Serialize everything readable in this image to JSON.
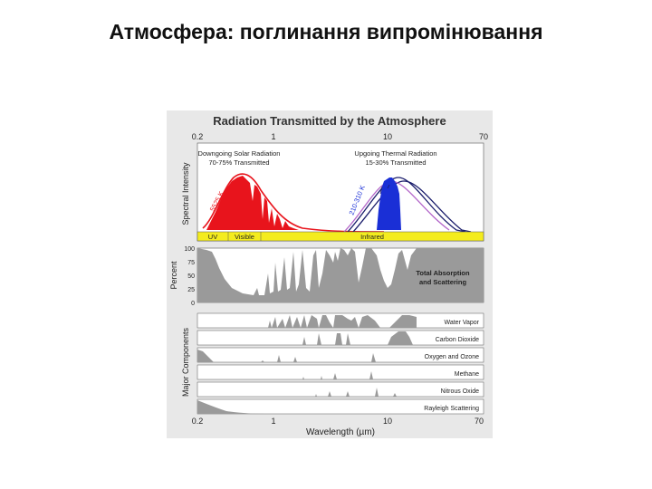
{
  "slide": {
    "title": "Атмосфера: поглинання випромінювання"
  },
  "figure": {
    "title": "Radiation Transmitted by the Atmosphere",
    "x_ticks": [
      "0.2",
      "1",
      "10",
      "70"
    ],
    "x_label": "Wavelength (µm)",
    "top_panel": {
      "ylabel": "Spectral Intensity",
      "solar_label_1": "Downgoing Solar Radiation",
      "solar_label_2": "70-75% Transmitted",
      "thermal_label_1": "Upgoing Thermal Radiation",
      "thermal_label_2": "15-30% Transmitted",
      "sun_temp": "5525 K",
      "earth_temp": "210-310 K",
      "band_uv": "UV",
      "band_visible": "Visible",
      "band_infrared": "Infrared"
    },
    "absorption_panel": {
      "ylabel": "Percent",
      "y_ticks": [
        "100",
        "75",
        "50",
        "25",
        "0"
      ],
      "label_1": "Total Absorption",
      "label_2": "and Scattering"
    },
    "components": {
      "ylabel": "Major Components",
      "items": [
        "Water Vapor",
        "Carbon Dioxide",
        "Oxygen and Ozone",
        "Methane",
        "Nitrous Oxide",
        "Rayleigh Scattering"
      ]
    },
    "colors": {
      "solar": "#e8141c",
      "thermal": "#1a2fd6",
      "absorption": "#9a9a9a",
      "band_strip": "#f4ec1e",
      "panel_bg": "#e8e8e8",
      "curve_dark": "#1a1d6b",
      "curve_purple": "#b366c9"
    }
  }
}
